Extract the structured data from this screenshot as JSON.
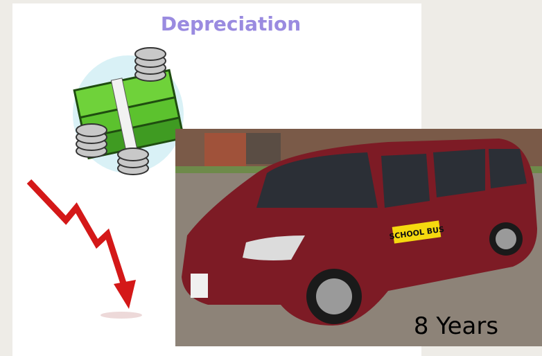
{
  "title": "Depreciation",
  "photo": {
    "sign": "SCHOOL BUS",
    "caption": "8 Years"
  }
}
